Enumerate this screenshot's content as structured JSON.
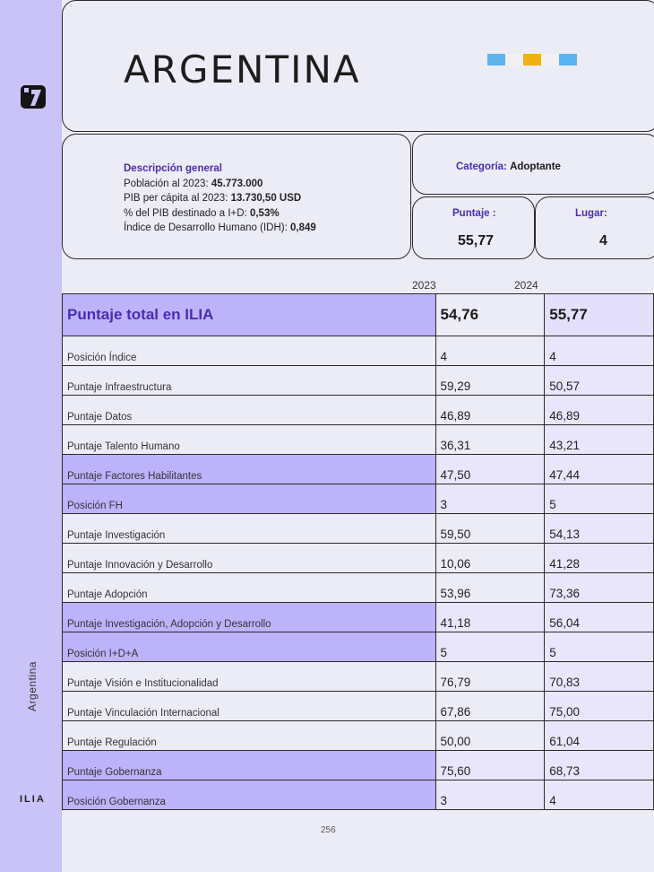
{
  "sidebar": {
    "logo": "ilia-logo-icon",
    "country_label": "Argentina",
    "brand": "ILIA"
  },
  "header": {
    "title": "ARGENTINA",
    "flag_colors": [
      "#5bb4ef",
      "#f1f1f4",
      "#f0b110",
      "#f1f1f4",
      "#5bb4ef"
    ]
  },
  "description": {
    "heading": "Descripción general",
    "lines": [
      {
        "label": "Población al 2023: ",
        "value": "45.773.000"
      },
      {
        "label": "PIB per cápita al 2023: ",
        "value": "13.730,50 USD"
      },
      {
        "label": "% del PIB destinado a I+D: ",
        "value": "0,53%"
      },
      {
        "label": "Índice de Desarrollo Humano (IDH): ",
        "value": "0,849"
      }
    ]
  },
  "category": {
    "label": "Categoría: ",
    "value": "Adoptante"
  },
  "score": {
    "label": "Puntaje :",
    "value": "55,77"
  },
  "place": {
    "label": "Lugar:",
    "value": "4"
  },
  "table": {
    "years": [
      "2023",
      "2024"
    ],
    "total": {
      "label": "Puntaje total en ILIA",
      "v2023": "54,76",
      "v2024": "55,77"
    },
    "rows": [
      {
        "label": "Posición Índice",
        "v2023": "4",
        "v2024": "4",
        "hl": false
      },
      {
        "label": "Puntaje Infraestructura",
        "v2023": "59,29",
        "v2024": "50,57",
        "hl": false
      },
      {
        "label": "Puntaje Datos",
        "v2023": "46,89",
        "v2024": "46,89",
        "hl": false
      },
      {
        "label": "Puntaje Talento Humano",
        "v2023": "36,31",
        "v2024": "43,21",
        "hl": false
      },
      {
        "label": "Puntaje Factores Habilitantes",
        "v2023": "47,50",
        "v2024": "47,44",
        "hl": true
      },
      {
        "label": "Posición FH",
        "v2023": "3",
        "v2024": "5",
        "hl": true
      },
      {
        "label": "Puntaje Investigación",
        "v2023": "59,50",
        "v2024": "54,13",
        "hl": false
      },
      {
        "label": "Puntaje Innovación y Desarrollo",
        "v2023": "10,06",
        "v2024": "41,28",
        "hl": false
      },
      {
        "label": "Puntaje Adopción",
        "v2023": "53,96",
        "v2024": "73,36",
        "hl": false
      },
      {
        "label": "Puntaje Investigación, Adopción y Desarrollo",
        "v2023": "41,18",
        "v2024": "56,04",
        "hl": true
      },
      {
        "label": "Posición I+D+A",
        "v2023": "5",
        "v2024": "5",
        "hl": true
      },
      {
        "label": "Puntaje Visión e Institucionalidad",
        "v2023": "76,79",
        "v2024": "70,83",
        "hl": false
      },
      {
        "label": "Puntaje Vinculación Internacional",
        "v2023": "67,86",
        "v2024": "75,00",
        "hl": false
      },
      {
        "label": "Puntaje Regulación",
        "v2023": "50,00",
        "v2024": "61,04",
        "hl": false
      },
      {
        "label": "Puntaje Gobernanza",
        "v2023": "75,60",
        "v2024": "68,73",
        "hl": true
      },
      {
        "label": "Posición Gobernanza",
        "v2023": "3",
        "v2024": "4",
        "hl": true
      }
    ]
  },
  "page_number": "256"
}
